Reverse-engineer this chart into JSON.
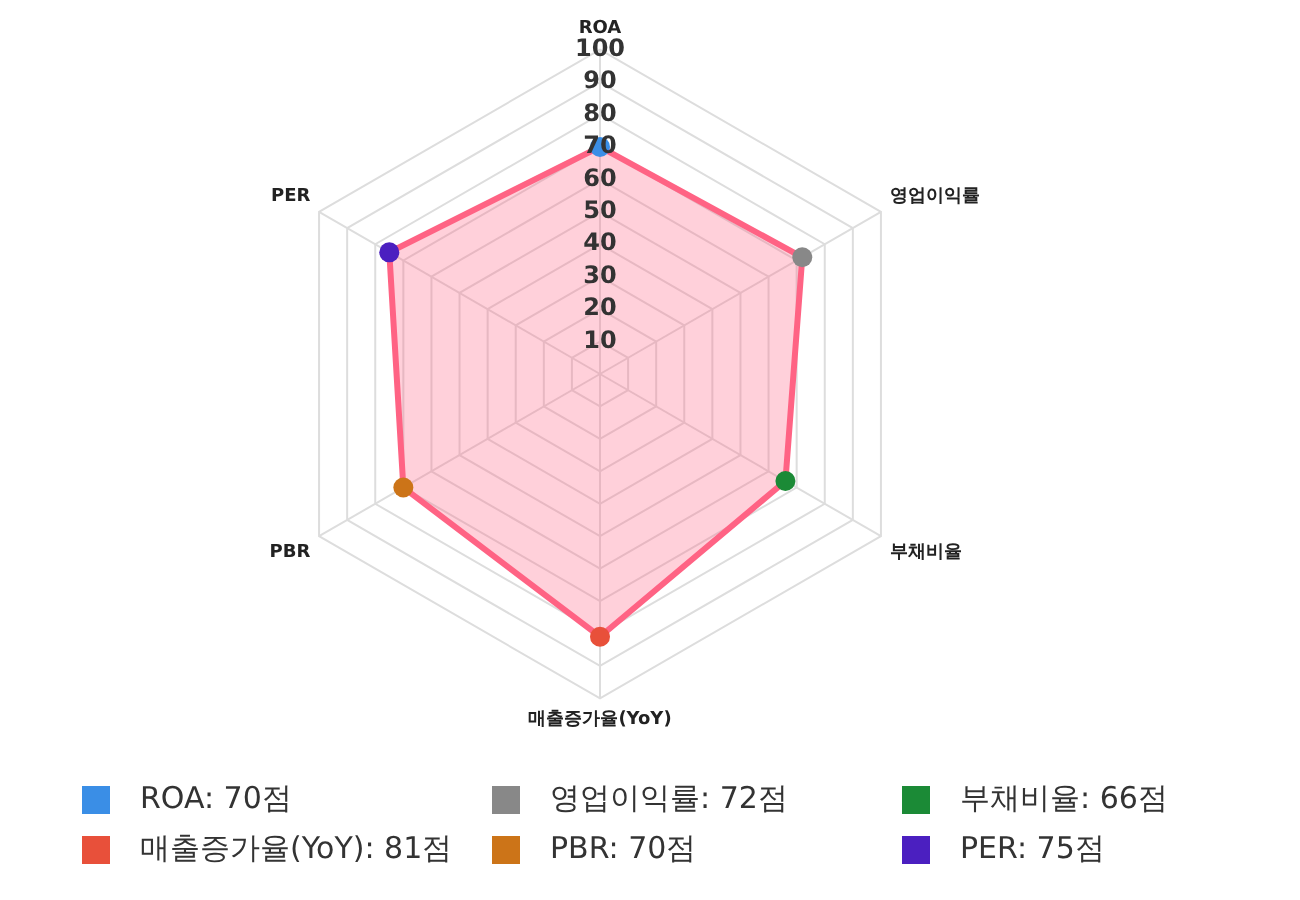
{
  "chart_data": {
    "type": "radar",
    "categories": [
      "ROA",
      "영업이익률",
      "부채비율",
      "매출증가율(YoY)",
      "PBR",
      "PER"
    ],
    "series": [
      {
        "color": "#ff6384",
        "values": [
          70,
          72,
          66,
          81,
          70,
          75
        ],
        "colors": [
          "#3a8ee6",
          "#888888",
          "#1b8a36",
          "#e8503a",
          "#cc7418",
          "#4b1fc0"
        ]
      }
    ],
    "annotations": [
      "ROA: 70점",
      "영업이익률: 72점",
      "부채비율: 66점",
      "매출증가율(YoY): 81점",
      "PBR: 70점",
      "PER: 75점"
    ],
    "ylim": [
      0,
      100
    ],
    "yticks": [
      10,
      20,
      30,
      40,
      50,
      60,
      70,
      80,
      90,
      100
    ],
    "grid": true,
    "marker": "circle"
  }
}
